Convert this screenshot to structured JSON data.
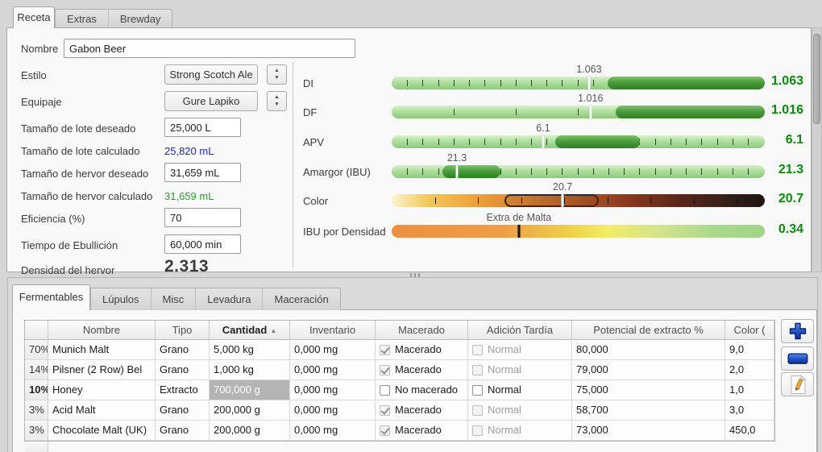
{
  "top_tabs": {
    "receta": "Receta",
    "extras": "Extras",
    "brewday": "Brewday"
  },
  "form": {
    "nombre_label": "Nombre",
    "nombre_value": "Gabon Beer",
    "estilo_label": "Estilo",
    "estilo_value": "Strong Scotch Ale",
    "equipo_label": "Equipaje",
    "equipo_value": "Gure Lapiko",
    "lote_deseado_label": "Tamaño de lote deseado",
    "lote_deseado_value": "25,000 L",
    "lote_calc_label": "Tamaño de lote calculado",
    "lote_calc_value": "25,820 mL",
    "hervor_deseado_label": "Tamaño de hervor deseado",
    "hervor_deseado_value": "31,659 mL",
    "hervor_calc_label": "Tamaño de hervor calculado",
    "hervor_calc_value": "31,659 mL",
    "eficiencia_label": "Eficiencia (%)",
    "eficiencia_value": "70",
    "ebullicion_label": "Tiempo de Ebullición",
    "ebullicion_value": "60,000 min",
    "densidad_label": "Densidad del hervor",
    "densidad_value": "2.313"
  },
  "colors": {
    "value_green": "#0a8a0a",
    "readout_blue": "#2323c0",
    "readout_green": "#2e9b2e"
  },
  "gauges": [
    {
      "label": "DI",
      "value": "1.063",
      "marker_label": "1.063",
      "marker_pos": 52.9,
      "range_start": 57.9,
      "range_end": 100,
      "tick_step": 4.15,
      "style": "green"
    },
    {
      "label": "DF",
      "value": "1.016",
      "marker_label": "1.016",
      "marker_pos": 53.3,
      "range_start": 60.0,
      "range_end": 100,
      "tick_step": 16.6,
      "style": "green"
    },
    {
      "label": "APV",
      "value": "6.1",
      "marker_label": "6.1",
      "marker_pos": 40.6,
      "range_start": 43.8,
      "range_end": 66.5,
      "tick_step": 4.15,
      "style": "green"
    },
    {
      "label": "Amargor (IBU)",
      "value": "21.3",
      "marker_label": "21.3",
      "marker_pos": 17.5,
      "range_start": 13.6,
      "range_end": 29.2,
      "tick_step": 4.15,
      "style": "green"
    },
    {
      "label": "Color",
      "value": "20.7",
      "marker_label": "20.7",
      "marker_pos": 45.8,
      "range_start": 30.2,
      "range_end": 55.5,
      "tick_step": 11.56,
      "style": "srm"
    },
    {
      "label": "IBU por Densidad",
      "value": "0.34",
      "marker_label": "Extra de Malta",
      "marker_pos": 34.1,
      "range_start": null,
      "range_end": null,
      "tick_step": 0,
      "style": "balance"
    }
  ],
  "bottom_tabs": {
    "fermentables": "Fermentables",
    "lupulos": "Lúpulos",
    "misc": "Misc",
    "levadura": "Levadura",
    "maceracion": "Maceración"
  },
  "table": {
    "headers": {
      "pct": "",
      "nombre": "Nombre",
      "tipo": "Tipo",
      "cantidad": "Cantidad",
      "sort_arrow": "▲",
      "inventario": "Inventario",
      "macerado": "Macerado",
      "adicion": "Adición Tardía",
      "potencial": "Potencial de extracto %",
      "color": "Color ("
    },
    "rows": [
      {
        "pct": "70%",
        "nombre": "Munich Malt",
        "tipo": "Grano",
        "cantidad": "5,000 kg",
        "inventario": "0,000 mg",
        "macerado": {
          "checked": true,
          "enabled": false,
          "label": "Macerado",
          "gray": false
        },
        "adicion": {
          "checked": false,
          "enabled": false,
          "label": "Normal",
          "gray": true
        },
        "potencial": "80,000",
        "color": "9,0",
        "selected": false
      },
      {
        "pct": "14%",
        "nombre": "Pilsner (2 Row) Bel",
        "tipo": "Grano",
        "cantidad": "1,000 kg",
        "inventario": "0,000 mg",
        "macerado": {
          "checked": true,
          "enabled": false,
          "label": "Macerado",
          "gray": false
        },
        "adicion": {
          "checked": false,
          "enabled": false,
          "label": "Normal",
          "gray": true
        },
        "potencial": "79,000",
        "color": "2,0",
        "selected": false
      },
      {
        "pct": "10%",
        "nombre": "Honey",
        "tipo": "Extracto",
        "cantidad": "700,000 g",
        "inventario": "0,000 mg",
        "macerado": {
          "checked": false,
          "enabled": true,
          "label": "No macerado",
          "gray": false
        },
        "adicion": {
          "checked": false,
          "enabled": true,
          "label": "Normal",
          "gray": false
        },
        "potencial": "75,000",
        "color": "1,0",
        "selected": true
      },
      {
        "pct": "3%",
        "nombre": "Acid Malt",
        "tipo": "Grano",
        "cantidad": "200,000 g",
        "inventario": "0,000 mg",
        "macerado": {
          "checked": true,
          "enabled": false,
          "label": "Macerado",
          "gray": false
        },
        "adicion": {
          "checked": false,
          "enabled": false,
          "label": "Normal",
          "gray": true
        },
        "potencial": "58,700",
        "color": "3,0",
        "selected": false
      },
      {
        "pct": "3%",
        "nombre": "Chocolate Malt (UK)",
        "tipo": "Grano",
        "cantidad": "200,000 g",
        "inventario": "0,000 mg",
        "macerado": {
          "checked": true,
          "enabled": false,
          "label": "Macerado",
          "gray": false
        },
        "adicion": {
          "checked": false,
          "enabled": false,
          "label": "Normal",
          "gray": true
        },
        "potencial": "73,000",
        "color": "450,0",
        "selected": false
      }
    ]
  },
  "side_buttons": {
    "add": "add-fermentable",
    "remove": "remove-fermentable",
    "edit": "edit-fermentable"
  }
}
